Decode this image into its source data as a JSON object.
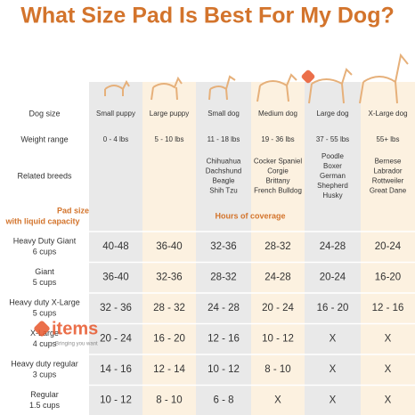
{
  "title": "What Size Pad Is Best For My Dog?",
  "watermark": {
    "brand": "items",
    "tagline": "Bringing you want"
  },
  "table": {
    "dog_size": {
      "label": "Dog size",
      "values": [
        "Small puppy",
        "Large puppy",
        "Small dog",
        "Medium dog",
        "Large dog",
        "X-Large dog"
      ]
    },
    "weight_range": {
      "label": "Weight range",
      "values": [
        "0 - 4 lbs",
        "5 - 10 lbs",
        "11 - 18 lbs",
        "19 - 36 lbs",
        "37 - 55 lbs",
        "55+ lbs"
      ]
    },
    "related_breeds": {
      "label": "Related breeds",
      "values": [
        [],
        [],
        [
          "Chihuahua",
          "Dachshund",
          "Beagle",
          "Shih Tzu"
        ],
        [
          "Cocker Spaniel",
          "Corgie",
          "Brittany",
          "French Bulldog"
        ],
        [
          "Poodle",
          "Boxer",
          "German",
          "Shepherd",
          "Husky"
        ],
        [
          "Bernese",
          "Labrador",
          "Rottweiler",
          "Great Dane"
        ]
      ]
    },
    "pad_header": {
      "label": [
        "Pad size",
        "with liquid capacity"
      ],
      "span": "Hours of coverage"
    },
    "pads": [
      {
        "name": [
          "Heavy Duty Giant",
          "6 cups"
        ],
        "hours": [
          "40-48",
          "36-40",
          "32-36",
          "28-32",
          "24-28",
          "20-24"
        ]
      },
      {
        "name": [
          "Giant",
          "5 cups"
        ],
        "hours": [
          "36-40",
          "32-36",
          "28-32",
          "24-28",
          "20-24",
          "16-20"
        ]
      },
      {
        "name": [
          "Heavy duty X-Large",
          "5 cups"
        ],
        "hours": [
          "32 - 36",
          "28 - 32",
          "24 - 28",
          "20 - 24",
          "16 - 20",
          "12 - 16"
        ]
      },
      {
        "name": [
          "X-Large",
          "4 cups"
        ],
        "hours": [
          "20 - 24",
          "16 - 20",
          "12 - 16",
          "10 - 12",
          "X",
          "X"
        ]
      },
      {
        "name": [
          "Heavy duty regular",
          "3 cups"
        ],
        "hours": [
          "14 - 16",
          "12 - 14",
          "10 - 12",
          "8 - 10",
          "X",
          "X"
        ]
      },
      {
        "name": [
          "Regular",
          "1.5 cups"
        ],
        "hours": [
          "10 - 12",
          "8 - 10",
          "6 - 8",
          "X",
          "X",
          "X"
        ]
      }
    ]
  }
}
